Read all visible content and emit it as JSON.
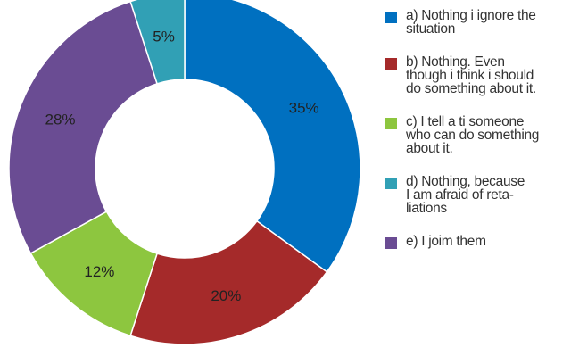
{
  "chart_data": {
    "type": "pie",
    "donut": true,
    "categories": [
      "a) Nothing i ignore the situation",
      "b) Nothing. Even though i think i should do something about it.",
      "c) I tell a ti someone who can do something about it.",
      "d) Nothing, because I am afraid of retaliations",
      "e) I joim them"
    ],
    "legend_lines": [
      [
        "a) Nothing i ignore the",
        "situation"
      ],
      [
        "b) Nothing. Even",
        "though i think i should",
        "do something about it."
      ],
      [
        "c) I tell a ti someone",
        "who can do something",
        "about it."
      ],
      [
        "d) Nothing, because",
        "I am afraid of reta-",
        "liations"
      ],
      [
        "e) I joim them"
      ]
    ],
    "values": [
      35,
      20,
      12,
      5,
      28
    ],
    "value_labels": [
      "35%",
      "20%",
      "12%",
      "5%",
      "28%"
    ],
    "drawing_order": [
      0,
      1,
      2,
      4,
      3
    ],
    "colors": [
      "#0070c0",
      "#a52a2a",
      "#8dc63f",
      "#31a0b5",
      "#6a4c93"
    ],
    "legend_placement": "right"
  }
}
